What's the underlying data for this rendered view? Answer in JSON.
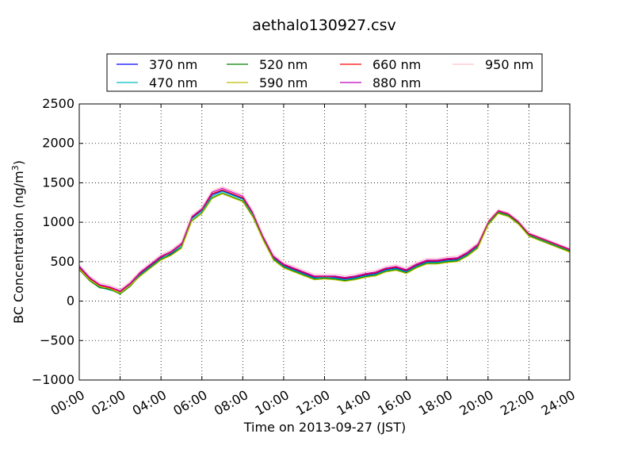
{
  "chart_data": {
    "type": "line",
    "title": "aethalo130927.csv",
    "xlabel": "Time on 2013-09-27 (JST)",
    "ylabel": "BC Concentration (ng/m",
    "ylabel_sup": "3",
    "ylabel_end": ")",
    "xlim": [
      "00:00",
      "24:00"
    ],
    "ylim": [
      -1000,
      2500
    ],
    "x_ticks": [
      "00:00",
      "02:00",
      "04:00",
      "06:00",
      "08:00",
      "10:00",
      "12:00",
      "14:00",
      "16:00",
      "18:00",
      "20:00",
      "22:00",
      "24:00"
    ],
    "y_ticks": [
      -1000,
      -500,
      0,
      500,
      1000,
      1500,
      2000,
      2500
    ],
    "grid": true,
    "legend_position": "top",
    "x": [
      "00:00",
      "00:30",
      "01:00",
      "01:30",
      "02:00",
      "02:30",
      "03:00",
      "03:30",
      "04:00",
      "04:30",
      "05:00",
      "05:30",
      "06:00",
      "06:30",
      "07:00",
      "07:30",
      "08:00",
      "08:30",
      "09:00",
      "09:30",
      "10:00",
      "10:30",
      "11:00",
      "11:30",
      "12:00",
      "12:30",
      "13:00",
      "13:30",
      "14:00",
      "14:30",
      "15:00",
      "15:30",
      "16:00",
      "16:30",
      "17:00",
      "17:30",
      "18:00",
      "18:30",
      "19:00",
      "19:30",
      "20:00",
      "20:30",
      "21:00",
      "21:30",
      "22:00",
      "22:30",
      "23:00",
      "23:30",
      "24:00"
    ],
    "series": [
      {
        "name": "370 nm",
        "color": "#0000ff",
        "values": [
          450,
          300,
          200,
          150,
          100,
          200,
          350,
          450,
          550,
          600,
          700,
          1050,
          1150,
          1350,
          1400,
          1350,
          1300,
          1100,
          800,
          550,
          450,
          400,
          350,
          300,
          300,
          300,
          280,
          300,
          330,
          350,
          400,
          420,
          380,
          450,
          500,
          500,
          520,
          530,
          600,
          700,
          1000,
          1150,
          1100,
          1000,
          850,
          800,
          750,
          700,
          650
        ]
      },
      {
        "name": "470 nm",
        "color": "#00bfbf",
        "values": [
          420,
          280,
          180,
          140,
          110,
          210,
          340,
          440,
          540,
          610,
          700,
          1040,
          1140,
          1330,
          1390,
          1340,
          1290,
          1090,
          790,
          540,
          440,
          390,
          340,
          290,
          300,
          290,
          270,
          290,
          320,
          340,
          390,
          410,
          370,
          440,
          490,
          490,
          510,
          520,
          590,
          690,
          980,
          1130,
          1090,
          990,
          840,
          790,
          740,
          690,
          640
        ]
      },
      {
        "name": "520 nm",
        "color": "#008000",
        "values": [
          400,
          260,
          170,
          150,
          90,
          190,
          330,
          430,
          530,
          590,
          680,
          1020,
          1120,
          1310,
          1370,
          1320,
          1270,
          1070,
          780,
          530,
          430,
          380,
          330,
          280,
          290,
          280,
          260,
          280,
          310,
          330,
          380,
          400,
          360,
          430,
          480,
          480,
          500,
          510,
          580,
          680,
          970,
          1120,
          1080,
          980,
          830,
          780,
          730,
          680,
          630
        ]
      },
      {
        "name": "590 nm",
        "color": "#bfbf00",
        "values": [
          410,
          270,
          190,
          160,
          100,
          200,
          320,
          420,
          520,
          580,
          670,
          1010,
          1110,
          1300,
          1360,
          1310,
          1260,
          1060,
          770,
          520,
          420,
          370,
          320,
          270,
          280,
          270,
          250,
          270,
          300,
          320,
          370,
          390,
          350,
          420,
          470,
          470,
          490,
          500,
          570,
          670,
          960,
          1110,
          1070,
          970,
          820,
          770,
          720,
          670,
          620
        ]
      },
      {
        "name": "660 nm",
        "color": "#ff0000",
        "values": [
          430,
          290,
          200,
          170,
          120,
          220,
          360,
          460,
          560,
          620,
          720,
          1060,
          1160,
          1360,
          1410,
          1360,
          1310,
          1110,
          810,
          560,
          460,
          410,
          360,
          310,
          310,
          310,
          290,
          310,
          340,
          360,
          410,
          430,
          390,
          460,
          510,
          510,
          530,
          540,
          610,
          710,
          1000,
          1140,
          1100,
          1000,
          850,
          800,
          750,
          700,
          650
        ]
      },
      {
        "name": "880 nm",
        "color": "#bf00bf",
        "values": [
          440,
          300,
          210,
          180,
          130,
          230,
          370,
          470,
          570,
          630,
          730,
          1070,
          1170,
          1380,
          1430,
          1380,
          1330,
          1120,
          820,
          570,
          470,
          420,
          370,
          320,
          320,
          320,
          300,
          320,
          350,
          370,
          420,
          440,
          400,
          470,
          520,
          520,
          540,
          550,
          620,
          720,
          1010,
          1150,
          1110,
          1010,
          860,
          810,
          760,
          710,
          660
        ]
      },
      {
        "name": "950 nm",
        "color": "#ffc0cb",
        "values": [
          460,
          320,
          230,
          200,
          150,
          250,
          390,
          490,
          590,
          650,
          750,
          1090,
          1190,
          1400,
          1450,
          1400,
          1350,
          1140,
          840,
          590,
          490,
          440,
          390,
          340,
          340,
          340,
          320,
          340,
          370,
          390,
          440,
          460,
          420,
          490,
          540,
          540,
          560,
          570,
          640,
          740,
          1020,
          1160,
          1120,
          1020,
          870,
          820,
          770,
          720,
          670
        ]
      }
    ]
  }
}
